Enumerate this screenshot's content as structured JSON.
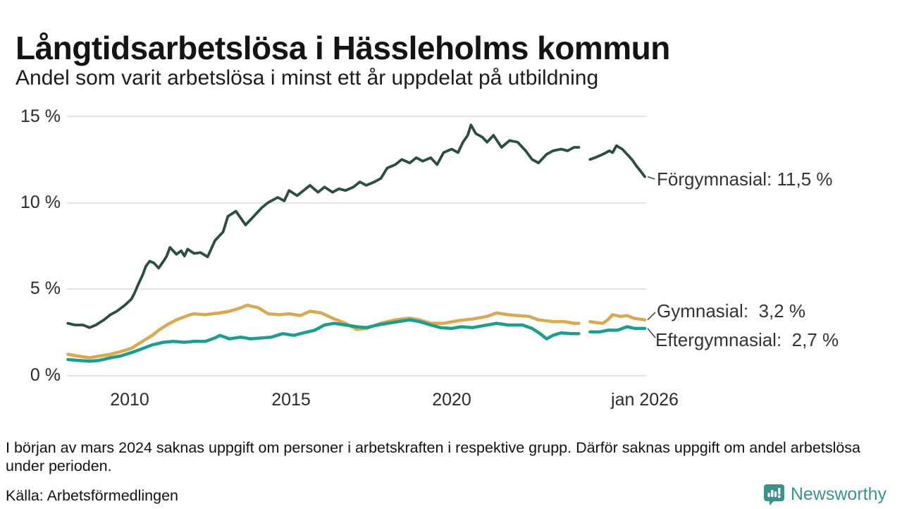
{
  "header": {
    "title": "Långtidsarbetslösa i Hässleholms kommun",
    "subtitle": "Andel som varit arbetslösa i minst ett år uppdelat på utbildning"
  },
  "chart_data": {
    "type": "line",
    "title": "Långtidsarbetslösa i Hässleholms kommun",
    "xlabel": "",
    "ylabel": "",
    "ylim": [
      0,
      15
    ],
    "xlim": [
      2008.05,
      2026.0
    ],
    "grid": true,
    "legend_position": "right-edge-labels",
    "gridline_color": "#e4e4e4",
    "yticks": [
      {
        "value": 0,
        "label": "0 %"
      },
      {
        "value": 5,
        "label": "5 %"
      },
      {
        "value": 10,
        "label": "10 %"
      },
      {
        "value": 15,
        "label": "15 %"
      }
    ],
    "xticks": [
      {
        "value": 2010,
        "label": "2010"
      },
      {
        "value": 2015,
        "label": "2015"
      },
      {
        "value": 2020,
        "label": "2020"
      },
      {
        "value": 2026,
        "label": "jan 2026"
      }
    ],
    "series": [
      {
        "name": "Förgymnasial",
        "label": "Förgymnasial: 11,5 %",
        "end_value": "11,5 %",
        "color": "#2d4d44",
        "width": 3.8,
        "points": [
          [
            2008.08,
            3.0
          ],
          [
            2008.3,
            2.9
          ],
          [
            2008.55,
            2.9
          ],
          [
            2008.75,
            2.75
          ],
          [
            2008.95,
            2.9
          ],
          [
            2009.2,
            3.2
          ],
          [
            2009.4,
            3.5
          ],
          [
            2009.6,
            3.7
          ],
          [
            2009.85,
            4.05
          ],
          [
            2010.05,
            4.4
          ],
          [
            2010.15,
            4.75
          ],
          [
            2010.25,
            5.2
          ],
          [
            2010.4,
            5.8
          ],
          [
            2010.5,
            6.3
          ],
          [
            2010.62,
            6.6
          ],
          [
            2010.75,
            6.5
          ],
          [
            2010.9,
            6.2
          ],
          [
            2011.05,
            6.6
          ],
          [
            2011.15,
            6.9
          ],
          [
            2011.25,
            7.4
          ],
          [
            2011.45,
            7.0
          ],
          [
            2011.6,
            7.2
          ],
          [
            2011.7,
            6.9
          ],
          [
            2011.8,
            7.3
          ],
          [
            2012.0,
            7.05
          ],
          [
            2012.2,
            7.1
          ],
          [
            2012.42,
            6.85
          ],
          [
            2012.65,
            7.8
          ],
          [
            2012.9,
            8.3
          ],
          [
            2013.05,
            9.2
          ],
          [
            2013.3,
            9.5
          ],
          [
            2013.6,
            8.7
          ],
          [
            2013.85,
            9.2
          ],
          [
            2014.1,
            9.7
          ],
          [
            2014.3,
            10.0
          ],
          [
            2014.6,
            10.3
          ],
          [
            2014.8,
            10.1
          ],
          [
            2014.95,
            10.7
          ],
          [
            2015.2,
            10.4
          ],
          [
            2015.4,
            10.7
          ],
          [
            2015.6,
            11.0
          ],
          [
            2015.85,
            10.6
          ],
          [
            2016.05,
            10.9
          ],
          [
            2016.3,
            10.6
          ],
          [
            2016.5,
            10.8
          ],
          [
            2016.7,
            10.7
          ],
          [
            2016.95,
            10.9
          ],
          [
            2017.15,
            11.2
          ],
          [
            2017.35,
            11.0
          ],
          [
            2017.6,
            11.2
          ],
          [
            2017.8,
            11.4
          ],
          [
            2018.0,
            12.0
          ],
          [
            2018.25,
            12.2
          ],
          [
            2018.45,
            12.5
          ],
          [
            2018.7,
            12.3
          ],
          [
            2018.9,
            12.6
          ],
          [
            2019.1,
            12.4
          ],
          [
            2019.35,
            12.6
          ],
          [
            2019.55,
            12.2
          ],
          [
            2019.75,
            12.9
          ],
          [
            2020.0,
            13.1
          ],
          [
            2020.2,
            12.9
          ],
          [
            2020.35,
            13.5
          ],
          [
            2020.5,
            13.9
          ],
          [
            2020.6,
            14.5
          ],
          [
            2020.75,
            14.0
          ],
          [
            2020.95,
            13.8
          ],
          [
            2021.1,
            13.5
          ],
          [
            2021.3,
            13.9
          ],
          [
            2021.55,
            13.2
          ],
          [
            2021.8,
            13.6
          ],
          [
            2022.05,
            13.5
          ],
          [
            2022.3,
            13.0
          ],
          [
            2022.5,
            12.5
          ],
          [
            2022.7,
            12.3
          ],
          [
            2022.95,
            12.8
          ],
          [
            2023.15,
            13.0
          ],
          [
            2023.4,
            13.1
          ],
          [
            2023.6,
            13.0
          ],
          [
            2023.8,
            13.2
          ],
          [
            2023.95,
            13.2
          ],
          null,
          [
            2024.3,
            12.5
          ],
          [
            2024.45,
            12.6
          ],
          [
            2024.7,
            12.8
          ],
          [
            2024.9,
            13.0
          ],
          [
            2025.0,
            12.9
          ],
          [
            2025.12,
            13.3
          ],
          [
            2025.3,
            13.1
          ],
          [
            2025.45,
            12.8
          ],
          [
            2025.6,
            12.5
          ],
          [
            2025.75,
            12.1
          ],
          [
            2025.88,
            11.8
          ],
          [
            2026.0,
            11.5
          ]
        ]
      },
      {
        "name": "Gymnasial",
        "label": "Gymnasial:  3,2 %",
        "end_value": "3,2 %",
        "color": "#d8a852",
        "width": 4.5,
        "points": [
          [
            2008.08,
            1.2
          ],
          [
            2008.4,
            1.1
          ],
          [
            2008.75,
            1.0
          ],
          [
            2009.05,
            1.1
          ],
          [
            2009.4,
            1.2
          ],
          [
            2009.7,
            1.35
          ],
          [
            2010.05,
            1.55
          ],
          [
            2010.35,
            1.9
          ],
          [
            2010.7,
            2.3
          ],
          [
            2010.9,
            2.6
          ],
          [
            2011.15,
            2.9
          ],
          [
            2011.45,
            3.2
          ],
          [
            2011.8,
            3.45
          ],
          [
            2012.0,
            3.55
          ],
          [
            2012.35,
            3.5
          ],
          [
            2012.8,
            3.6
          ],
          [
            2013.1,
            3.7
          ],
          [
            2013.45,
            3.9
          ],
          [
            2013.65,
            4.05
          ],
          [
            2014.0,
            3.9
          ],
          [
            2014.3,
            3.55
          ],
          [
            2014.65,
            3.5
          ],
          [
            2014.95,
            3.55
          ],
          [
            2015.3,
            3.45
          ],
          [
            2015.6,
            3.7
          ],
          [
            2015.95,
            3.6
          ],
          [
            2016.3,
            3.3
          ],
          [
            2016.7,
            3.0
          ],
          [
            2017.05,
            2.65
          ],
          [
            2017.35,
            2.7
          ],
          [
            2017.8,
            3.0
          ],
          [
            2018.25,
            3.2
          ],
          [
            2018.7,
            3.3
          ],
          [
            2019.0,
            3.2
          ],
          [
            2019.35,
            3.0
          ],
          [
            2019.75,
            3.0
          ],
          [
            2020.2,
            3.15
          ],
          [
            2020.65,
            3.25
          ],
          [
            2021.1,
            3.4
          ],
          [
            2021.4,
            3.6
          ],
          [
            2021.75,
            3.5
          ],
          [
            2022.05,
            3.45
          ],
          [
            2022.4,
            3.4
          ],
          [
            2022.7,
            3.2
          ],
          [
            2023.15,
            3.1
          ],
          [
            2023.5,
            3.1
          ],
          [
            2023.8,
            3.0
          ],
          [
            2023.95,
            3.0
          ],
          null,
          [
            2024.3,
            3.1
          ],
          [
            2024.45,
            3.05
          ],
          [
            2024.7,
            3.0
          ],
          [
            2024.85,
            3.2
          ],
          [
            2025.0,
            3.5
          ],
          [
            2025.25,
            3.4
          ],
          [
            2025.45,
            3.45
          ],
          [
            2025.65,
            3.3
          ],
          [
            2026.0,
            3.2
          ]
        ]
      },
      {
        "name": "Eftergymnasial",
        "label": "Eftergymnasial:  2,7 %",
        "end_value": "2,7 %",
        "color": "#1c9d8d",
        "width": 4.5,
        "points": [
          [
            2008.08,
            0.9
          ],
          [
            2008.4,
            0.85
          ],
          [
            2008.75,
            0.8
          ],
          [
            2009.05,
            0.85
          ],
          [
            2009.4,
            1.0
          ],
          [
            2009.7,
            1.1
          ],
          [
            2010.05,
            1.3
          ],
          [
            2010.35,
            1.5
          ],
          [
            2010.7,
            1.75
          ],
          [
            2011.05,
            1.9
          ],
          [
            2011.35,
            1.95
          ],
          [
            2011.7,
            1.9
          ],
          [
            2012.0,
            1.95
          ],
          [
            2012.35,
            1.95
          ],
          [
            2012.65,
            2.15
          ],
          [
            2012.8,
            2.3
          ],
          [
            2013.1,
            2.1
          ],
          [
            2013.45,
            2.2
          ],
          [
            2013.75,
            2.1
          ],
          [
            2014.1,
            2.15
          ],
          [
            2014.4,
            2.2
          ],
          [
            2014.75,
            2.4
          ],
          [
            2015.1,
            2.3
          ],
          [
            2015.4,
            2.45
          ],
          [
            2015.75,
            2.6
          ],
          [
            2016.05,
            2.9
          ],
          [
            2016.35,
            3.0
          ],
          [
            2016.7,
            2.9
          ],
          [
            2017.05,
            2.8
          ],
          [
            2017.35,
            2.75
          ],
          [
            2017.7,
            2.9
          ],
          [
            2018.0,
            3.0
          ],
          [
            2018.35,
            3.1
          ],
          [
            2018.7,
            3.2
          ],
          [
            2019.0,
            3.1
          ],
          [
            2019.35,
            2.9
          ],
          [
            2019.65,
            2.75
          ],
          [
            2020.0,
            2.7
          ],
          [
            2020.3,
            2.8
          ],
          [
            2020.65,
            2.75
          ],
          [
            2021.1,
            2.9
          ],
          [
            2021.4,
            3.0
          ],
          [
            2021.75,
            2.9
          ],
          [
            2022.2,
            2.9
          ],
          [
            2022.5,
            2.7
          ],
          [
            2022.75,
            2.4
          ],
          [
            2022.95,
            2.1
          ],
          [
            2023.15,
            2.3
          ],
          [
            2023.4,
            2.45
          ],
          [
            2023.7,
            2.4
          ],
          [
            2023.95,
            2.4
          ],
          null,
          [
            2024.3,
            2.5
          ],
          [
            2024.6,
            2.5
          ],
          [
            2024.85,
            2.6
          ],
          [
            2025.15,
            2.6
          ],
          [
            2025.45,
            2.8
          ],
          [
            2025.7,
            2.7
          ],
          [
            2026.0,
            2.7
          ]
        ]
      }
    ]
  },
  "footer": {
    "note": "I början av mars 2024 saknas uppgift om personer i arbetskraften i respektive grupp. Därför saknas uppgift om andel arbetslösa under perioden.",
    "source": "Källa: Arbetsförmedlingen",
    "brand": "Newsworthy",
    "brand_color": "#3c928a"
  }
}
